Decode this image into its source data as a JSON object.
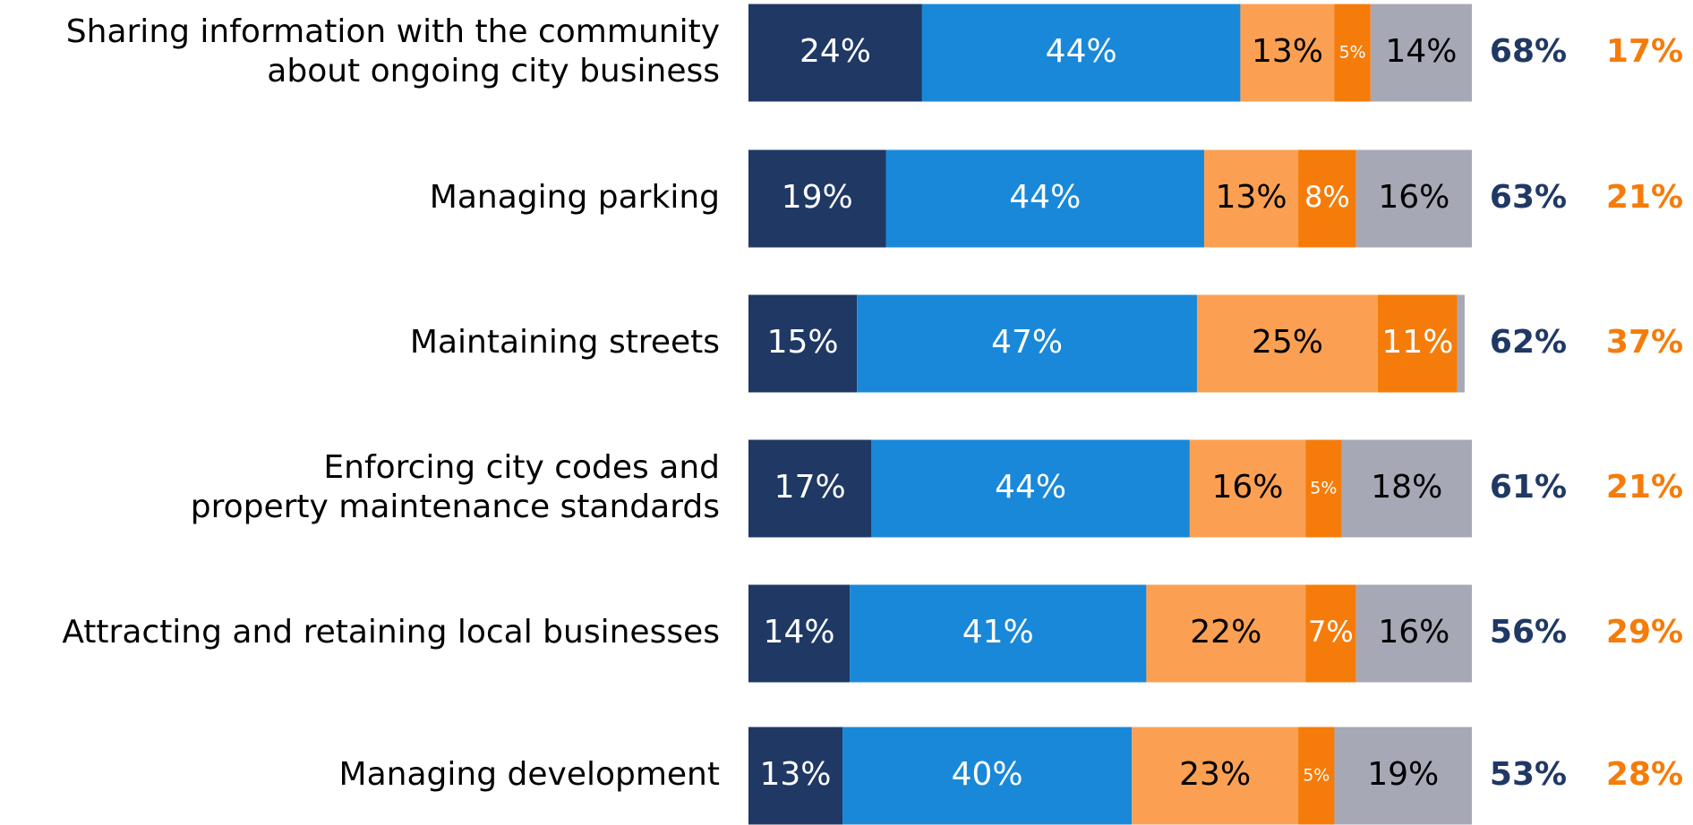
{
  "chart_data": {
    "type": "stacked_bar_horizontal",
    "categories": [
      [
        "Sharing information with the community",
        "about ongoing city business"
      ],
      [
        "Managing parking"
      ],
      [
        "Maintaining streets"
      ],
      [
        "Enforcing city codes and",
        "property maintenance standards"
      ],
      [
        "Attracting and retaining local businesses"
      ],
      [
        "Managing development"
      ]
    ],
    "xlim": [
      0,
      100
    ],
    "series": [
      {
        "color": "#1f3864",
        "label_color": "#ffffff",
        "values": [
          24,
          19,
          15,
          17,
          14,
          13
        ],
        "value_labels": [
          "24%",
          "19%",
          "15%",
          "17%",
          "14%",
          "13%"
        ]
      },
      {
        "color": "#1a88d8",
        "label_color": "#ffffff",
        "values": [
          44,
          44,
          47,
          44,
          41,
          40
        ],
        "value_labels": [
          "44%",
          "44%",
          "47%",
          "44%",
          "41%",
          "40%"
        ]
      },
      {
        "color": "#fba052",
        "label_color": "#000000",
        "values": [
          13,
          13,
          25,
          16,
          22,
          23
        ],
        "value_labels": [
          "13%",
          "13%",
          "25%",
          "16%",
          "22%",
          "23%"
        ]
      },
      {
        "color": "#f57c0a",
        "label_color": "#ffffff",
        "values": [
          5,
          8,
          11,
          5,
          7,
          5
        ],
        "value_labels": [
          "5%",
          "8%",
          "11%",
          "5%",
          "7%",
          "5%"
        ]
      },
      {
        "color": "#a7a8b6",
        "label_color": "#000000",
        "values": [
          14,
          16,
          1,
          18,
          16,
          19
        ],
        "value_labels": [
          "14%",
          "16%",
          null,
          "18%",
          "16%",
          "19%"
        ]
      }
    ],
    "totals": [
      {
        "color": "#1f3864",
        "values": [
          68,
          63,
          62,
          61,
          56,
          53
        ],
        "value_labels": [
          "68%",
          "63%",
          "62%",
          "61%",
          "56%",
          "53%"
        ]
      },
      {
        "color": "#f57c0a",
        "values": [
          17,
          21,
          37,
          21,
          29,
          28
        ],
        "value_labels": [
          "17%",
          "21%",
          "37%",
          "21%",
          "29%",
          "28%"
        ]
      }
    ]
  }
}
